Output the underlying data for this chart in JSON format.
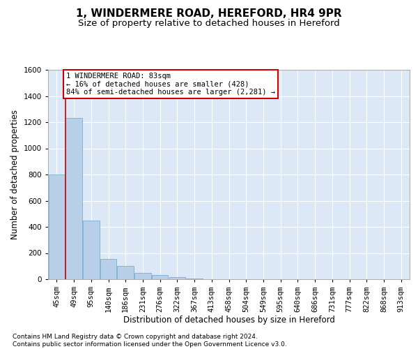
{
  "title_line1": "1, WINDERMERE ROAD, HEREFORD, HR4 9PR",
  "title_line2": "Size of property relative to detached houses in Hereford",
  "xlabel": "Distribution of detached houses by size in Hereford",
  "ylabel": "Number of detached properties",
  "bar_labels": [
    "45sqm",
    "49sqm",
    "95sqm",
    "140sqm",
    "186sqm",
    "231sqm",
    "276sqm",
    "322sqm",
    "367sqm",
    "413sqm",
    "458sqm",
    "504sqm",
    "549sqm",
    "595sqm",
    "640sqm",
    "686sqm",
    "731sqm",
    "777sqm",
    "822sqm",
    "868sqm",
    "913sqm"
  ],
  "bar_heights": [
    800,
    1230,
    450,
    155,
    100,
    50,
    30,
    15,
    5,
    0,
    0,
    0,
    0,
    0,
    0,
    0,
    0,
    0,
    0,
    0,
    0
  ],
  "bar_color": "#b8cfe8",
  "bar_edge_color": "#7aadd4",
  "background_color": "#dce8f5",
  "grid_color": "#ffffff",
  "red_line_x": 0.5,
  "red_line_color": "#cc0000",
  "annotation_text": "1 WINDERMERE ROAD: 83sqm\n← 16% of detached houses are smaller (428)\n84% of semi-detached houses are larger (2,281) →",
  "annotation_box_color": "#ffffff",
  "annotation_box_edge": "#cc0000",
  "ylim": [
    0,
    1600
  ],
  "yticks": [
    0,
    200,
    400,
    600,
    800,
    1000,
    1200,
    1400,
    1600
  ],
  "footer_text": "Contains HM Land Registry data © Crown copyright and database right 2024.\nContains public sector information licensed under the Open Government Licence v3.0.",
  "title_fontsize": 11,
  "subtitle_fontsize": 9.5,
  "label_fontsize": 8.5,
  "tick_fontsize": 7.5,
  "footer_fontsize": 6.5,
  "annot_fontsize": 7.5
}
